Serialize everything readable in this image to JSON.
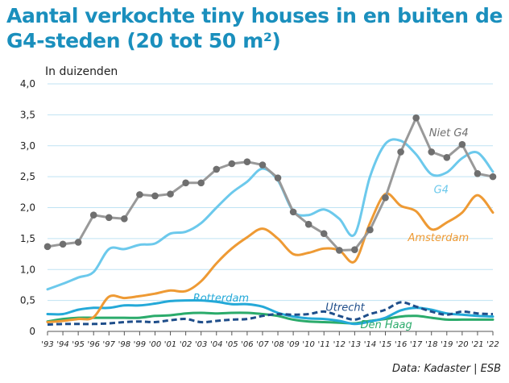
{
  "title_line1": "Aantal verkochte tiny houses in en buiten de",
  "title_line2": "G4-steden (20 tot 50 m²)",
  "unit_label": "In duizenden",
  "source": "Data: Kadaster | ESB",
  "colors": {
    "title": "#1a8fbd",
    "niet_g4": "#999999",
    "g4": "#6cc9ec",
    "amsterdam": "#ee9a34",
    "rotterdam": "#24a9d8",
    "utrecht": "#1f4e8a",
    "den_haag": "#2bab6b",
    "grid": "#bfe3f3"
  },
  "chart_data": {
    "type": "line",
    "title": "Aantal verkochte tiny houses in en buiten de G4-steden (20 tot 50 m²)",
    "ylabel": "In duizenden",
    "ylim": [
      0,
      4.0
    ],
    "yticks": [
      "0",
      "0,5",
      "1,0",
      "1,5",
      "2,0",
      "2,5",
      "3,0",
      "3,5",
      "4,0"
    ],
    "grid": true,
    "categories": [
      "'93",
      "'94",
      "'95",
      "'96",
      "'97",
      "'98",
      "'99",
      "'00",
      "'01",
      "'02",
      "'03",
      "'04",
      "'05",
      "'06",
      "'07",
      "'08",
      "'09",
      "'10",
      "'11",
      "'12",
      "'13",
      "'14",
      "'15",
      "'16",
      "'17",
      "'18",
      "'19",
      "'20",
      "'21",
      "'22"
    ],
    "series": [
      {
        "name": "Niet G4",
        "key": "niet_g4",
        "markers": true,
        "dashed": false,
        "values": [
          1.37,
          1.41,
          1.44,
          1.88,
          1.84,
          1.82,
          2.21,
          2.19,
          2.22,
          2.4,
          2.4,
          2.62,
          2.71,
          2.74,
          2.69,
          2.48,
          1.93,
          1.73,
          1.58,
          1.31,
          1.32,
          1.64,
          2.16,
          2.9,
          3.45,
          2.9,
          2.81,
          3.02,
          2.55,
          2.5
        ]
      },
      {
        "name": "G4",
        "key": "g4",
        "markers": false,
        "dashed": false,
        "values": [
          0.68,
          0.77,
          0.87,
          0.96,
          1.33,
          1.33,
          1.4,
          1.42,
          1.58,
          1.61,
          1.75,
          2.0,
          2.24,
          2.42,
          2.63,
          2.44,
          1.94,
          1.88,
          1.97,
          1.82,
          1.57,
          2.5,
          3.03,
          3.08,
          2.86,
          2.54,
          2.57,
          2.8,
          2.89,
          2.58
        ]
      },
      {
        "name": "Amsterdam",
        "key": "amsterdam",
        "markers": false,
        "dashed": false,
        "values": [
          0.15,
          0.17,
          0.2,
          0.23,
          0.56,
          0.54,
          0.57,
          0.61,
          0.66,
          0.65,
          0.81,
          1.1,
          1.34,
          1.52,
          1.66,
          1.5,
          1.25,
          1.27,
          1.34,
          1.31,
          1.13,
          1.75,
          2.22,
          2.03,
          1.94,
          1.65,
          1.76,
          1.92,
          2.2,
          1.92
        ]
      },
      {
        "name": "Rotterdam",
        "key": "rotterdam",
        "markers": false,
        "dashed": false,
        "values": [
          0.28,
          0.28,
          0.35,
          0.38,
          0.38,
          0.42,
          0.42,
          0.45,
          0.49,
          0.5,
          0.5,
          0.48,
          0.44,
          0.44,
          0.4,
          0.3,
          0.24,
          0.21,
          0.2,
          0.17,
          0.12,
          0.16,
          0.22,
          0.34,
          0.38,
          0.35,
          0.29,
          0.27,
          0.25,
          0.24
        ]
      },
      {
        "name": "Utrecht",
        "key": "utrecht",
        "markers": false,
        "dashed": true,
        "values": [
          0.11,
          0.12,
          0.12,
          0.12,
          0.13,
          0.15,
          0.16,
          0.15,
          0.18,
          0.2,
          0.15,
          0.17,
          0.19,
          0.2,
          0.25,
          0.28,
          0.27,
          0.28,
          0.32,
          0.25,
          0.19,
          0.28,
          0.35,
          0.47,
          0.4,
          0.32,
          0.27,
          0.32,
          0.29,
          0.28
        ]
      },
      {
        "name": "Den Haag",
        "key": "den_haag",
        "markers": false,
        "dashed": false,
        "values": [
          0.16,
          0.2,
          0.22,
          0.22,
          0.22,
          0.22,
          0.22,
          0.25,
          0.26,
          0.29,
          0.3,
          0.29,
          0.3,
          0.3,
          0.28,
          0.25,
          0.19,
          0.16,
          0.15,
          0.14,
          0.13,
          0.17,
          0.2,
          0.24,
          0.25,
          0.22,
          0.19,
          0.19,
          0.19,
          0.19
        ]
      }
    ],
    "labels": [
      {
        "text": "Niet G4",
        "series": "niet_g4",
        "x": "'19",
        "y": 3.18
      },
      {
        "text": "G4",
        "series": "g4",
        "x": "'17",
        "y": 2.34
      },
      {
        "text": "Amsterdam",
        "series": "amsterdam",
        "x": "'15",
        "y": 1.51
      },
      {
        "text": "Rotterdam",
        "series": "rotterdam",
        "x": "'03",
        "y": 0.56
      },
      {
        "text": "Utrecht",
        "series": "utrecht",
        "x": "'11",
        "y": 0.36
      },
      {
        "text": "Den Haag",
        "series": "den_haag",
        "x": "'14",
        "y": 0.0
      }
    ]
  }
}
